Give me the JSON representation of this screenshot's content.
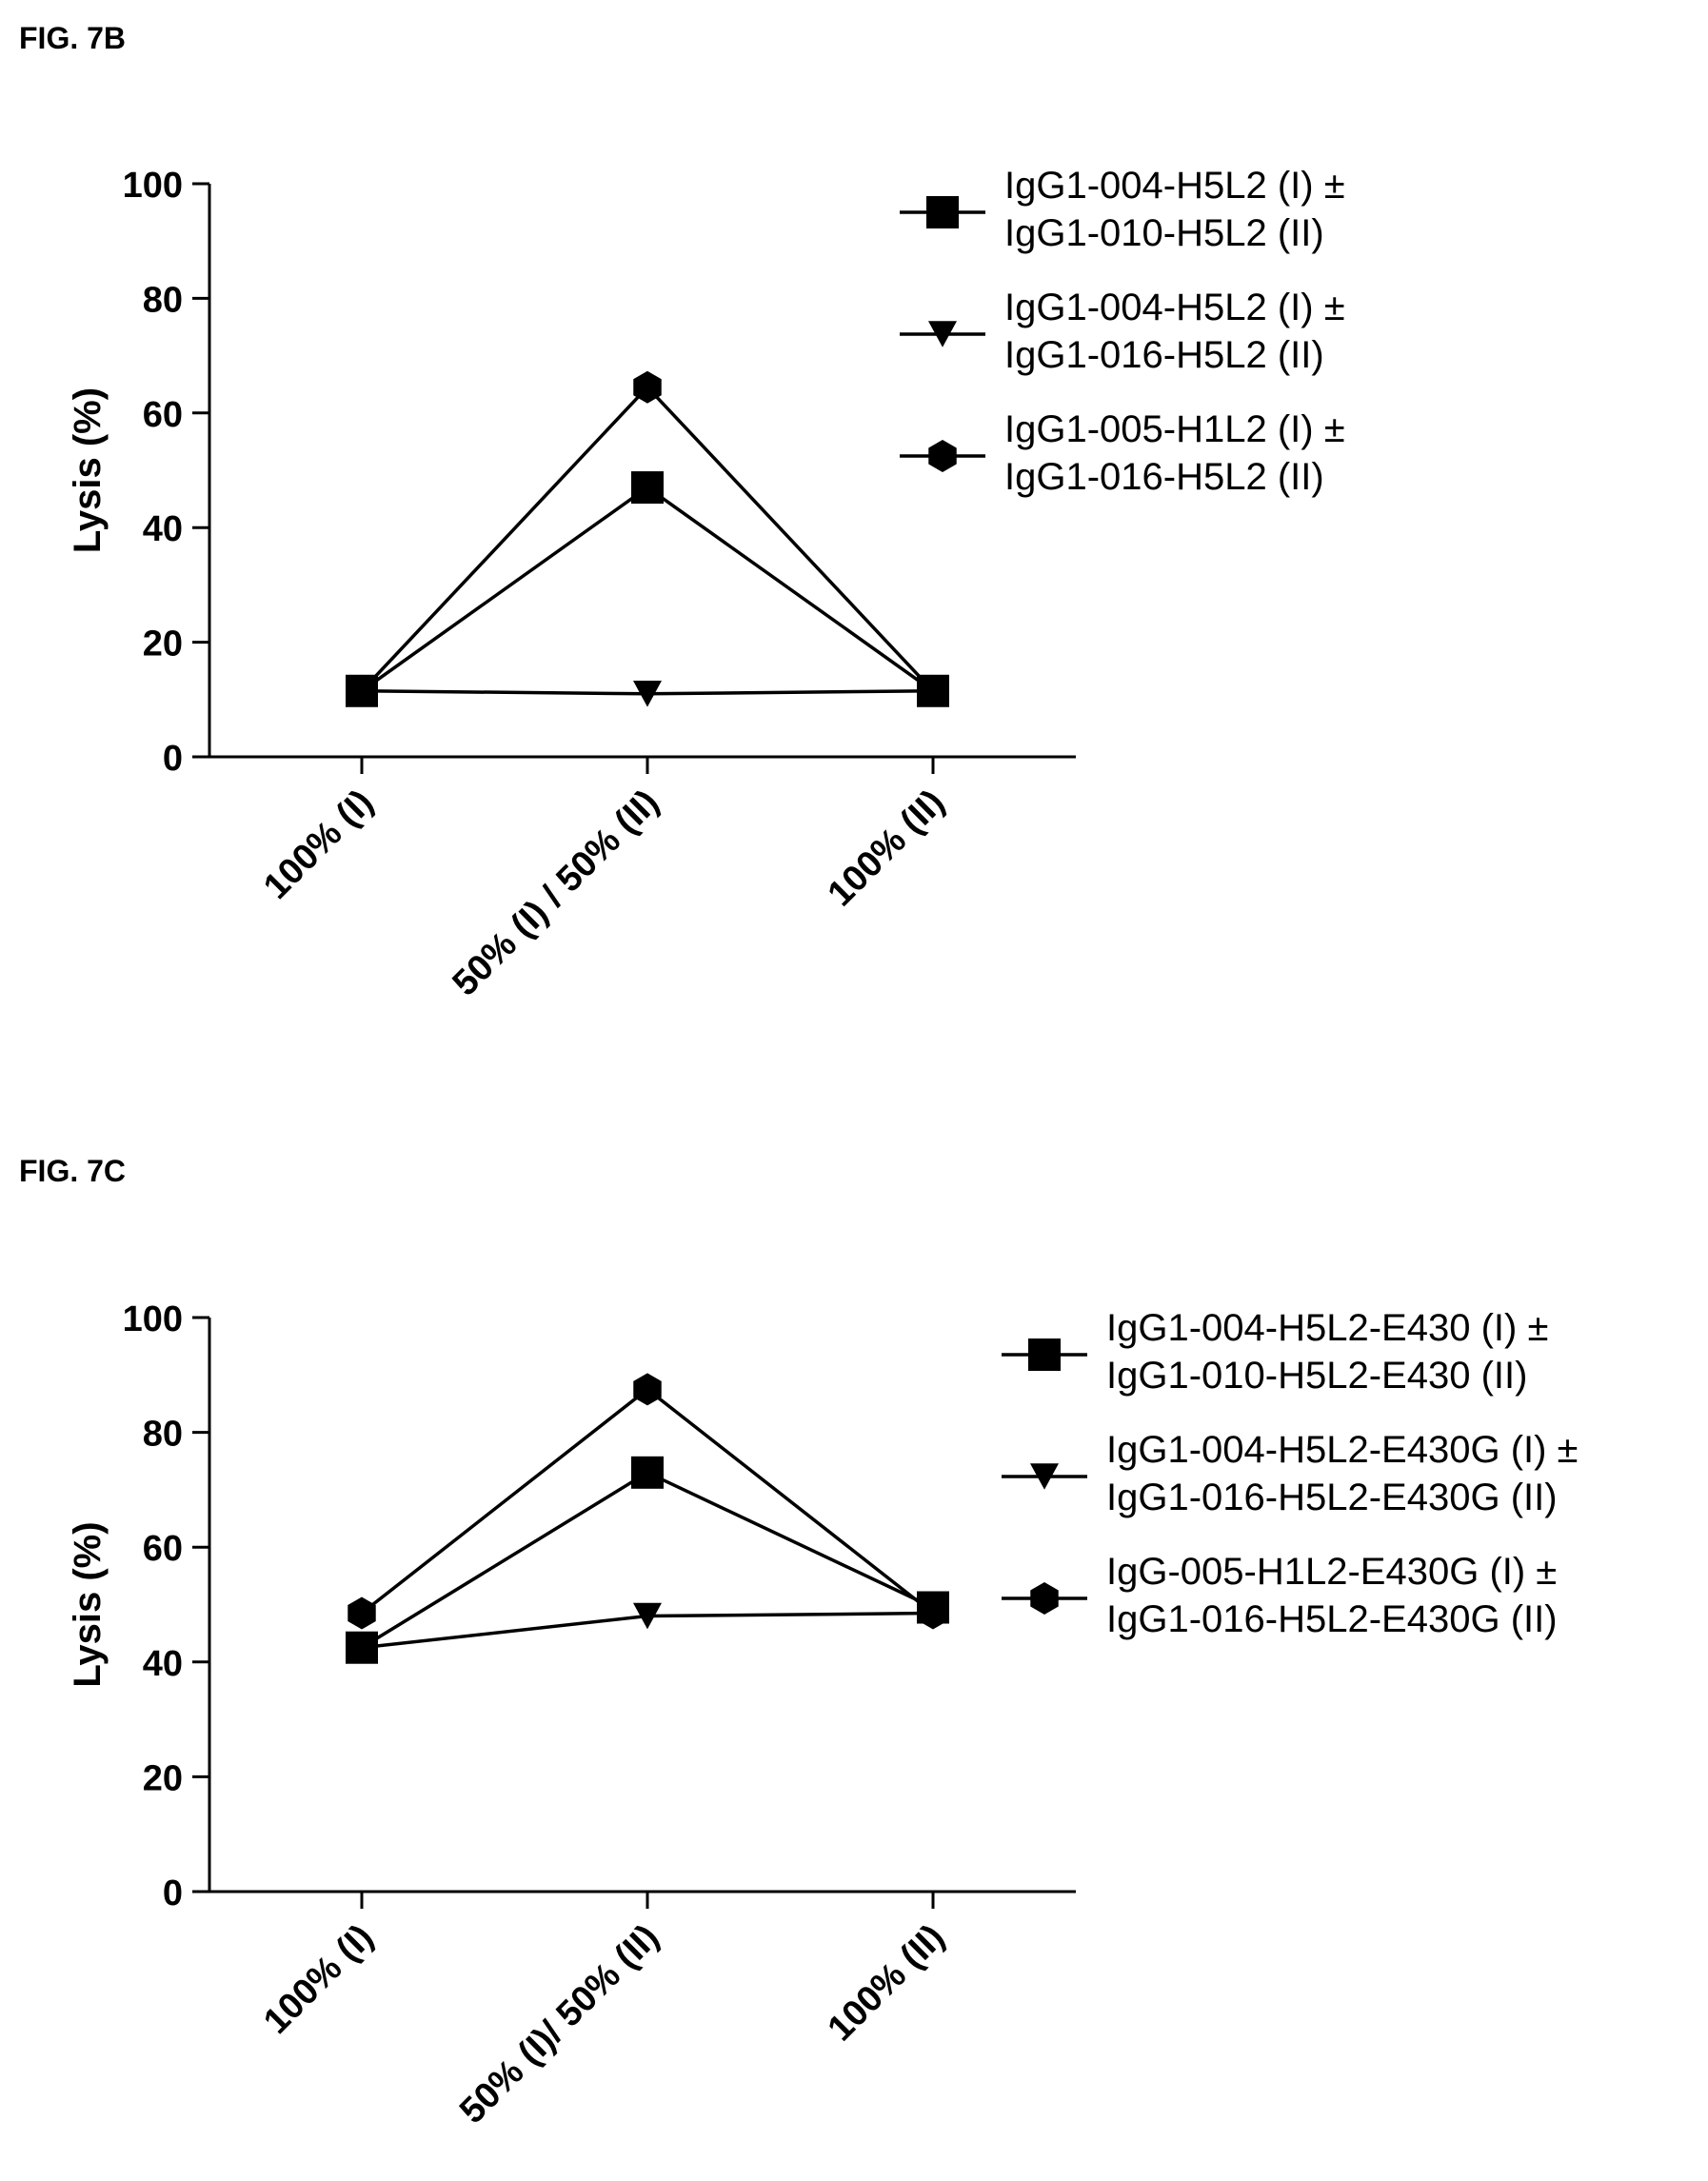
{
  "figures": [
    {
      "label": "FIG. 7B",
      "chart_data": {
        "type": "line",
        "categories": [
          "100% (I)",
          "50% (I) / 50% (II)",
          "100% (II)"
        ],
        "ylabel": "Lysis (%)",
        "xlabel": "",
        "ylim": [
          0,
          100
        ],
        "yticks": [
          0,
          20,
          40,
          60,
          80,
          100
        ],
        "series": [
          {
            "name_line1": "IgG1-004-H5L2 (I) ±",
            "name_line2": "IgG1-010-H5L2 (II)",
            "marker": "square",
            "values": [
              11.5,
              47,
              11.5
            ]
          },
          {
            "name_line1": "IgG1-004-H5L2 (I) ±",
            "name_line2": "IgG1-016-H5L2 (II)",
            "marker": "triangle-down",
            "values": [
              11.5,
              11,
              11.5
            ]
          },
          {
            "name_line1": "IgG1-005-H1L2 (I) ±",
            "name_line2": "IgG1-016-H5L2 (II)",
            "marker": "hexagon",
            "values": [
              11.5,
              64.5,
              11.5
            ]
          }
        ]
      }
    },
    {
      "label": "FIG. 7C",
      "chart_data": {
        "type": "line",
        "categories": [
          "100% (I)",
          "50% (I)/ 50% (II)",
          "100% (II)"
        ],
        "ylabel": "Lysis (%)",
        "xlabel": "",
        "ylim": [
          0,
          100
        ],
        "yticks": [
          0,
          20,
          40,
          60,
          80,
          100
        ],
        "series": [
          {
            "name_line1": "IgG1-004-H5L2-E430 (I) ±",
            "name_line2": "IgG1-010-H5L2-E430 (II)",
            "marker": "square",
            "values": [
              42.5,
              73,
              49.5
            ]
          },
          {
            "name_line1": "IgG1-004-H5L2-E430G (I) ±",
            "name_line2": "IgG1-016-H5L2-E430G (II)",
            "marker": "triangle-down",
            "values": [
              42.5,
              48,
              48.5
            ]
          },
          {
            "name_line1": "IgG-005-H1L2-E430G (I) ±",
            "name_line2": "IgG1-016-H5L2-E430G (II)",
            "marker": "hexagon",
            "values": [
              48.5,
              87.5,
              48.5
            ]
          }
        ]
      }
    }
  ]
}
